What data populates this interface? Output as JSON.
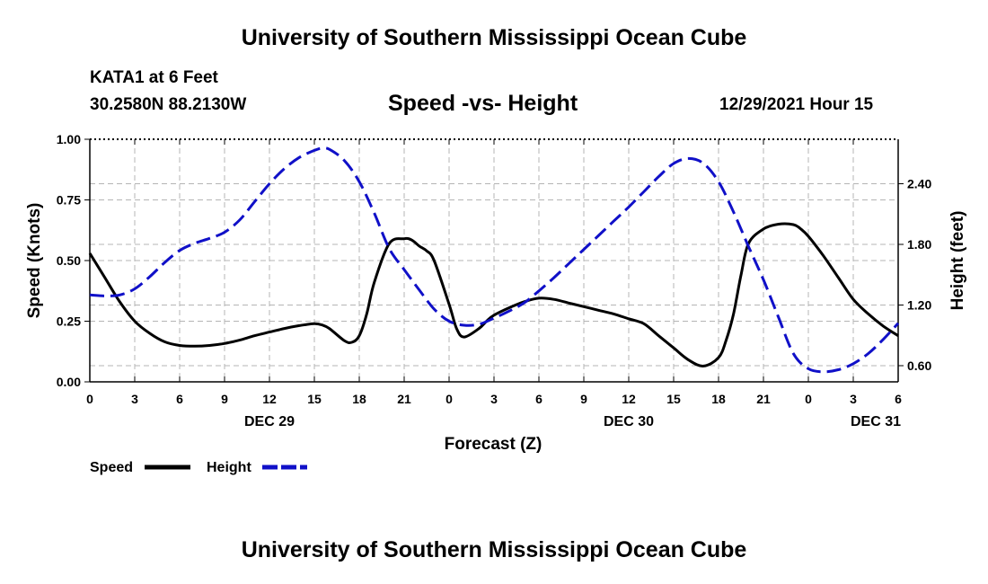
{
  "header": {
    "title_top": "University of Southern Mississippi Ocean Cube",
    "title_bottom": "University of Southern Mississippi Ocean Cube",
    "station": "KATA1 at 6 Feet",
    "coords": "30.2580N  88.2130W",
    "chart_title": "Speed -vs- Height",
    "datetime": "12/29/2021 Hour 15"
  },
  "colors": {
    "speed": "#000000",
    "height": "#1010c8",
    "grid": "#b4b4b4"
  },
  "chart_data": {
    "type": "line",
    "title": "Speed -vs- Height",
    "xlabel": "Forecast (Z)",
    "ylabel": "Speed (Knots)",
    "y2label": "Height (feet)",
    "xlim": [
      0,
      54
    ],
    "ylim": [
      0,
      1.0
    ],
    "y2lim": [
      0.44,
      2.84
    ],
    "x_ticks": [
      0,
      3,
      6,
      9,
      12,
      15,
      18,
      21,
      24,
      27,
      30,
      33,
      36,
      39,
      42,
      45,
      48,
      51,
      54
    ],
    "x_tick_labels": [
      "0",
      "3",
      "6",
      "9",
      "12",
      "15",
      "18",
      "21",
      "0",
      "3",
      "6",
      "9",
      "12",
      "15",
      "18",
      "21",
      "0",
      "3",
      "6"
    ],
    "date_labels": [
      {
        "x": 12,
        "label": "DEC 29"
      },
      {
        "x": 36,
        "label": "DEC 30"
      },
      {
        "x": 52.5,
        "label": "DEC 31"
      }
    ],
    "y_ticks": [
      0,
      0.25,
      0.5,
      0.75,
      1.0
    ],
    "y_tick_labels": [
      "0.00",
      "0.25",
      "0.50",
      "0.75",
      "1.00"
    ],
    "y2_ticks": [
      0.6,
      1.2,
      1.8,
      2.4
    ],
    "y2_tick_labels": [
      "0.60",
      "1.20",
      "1.80",
      "2.40"
    ],
    "grid": true,
    "legend": {
      "placement": "bottom-left",
      "entries": [
        "Speed",
        "Height"
      ]
    },
    "series": [
      {
        "name": "Speed",
        "axis": "left",
        "style": "solid",
        "x": [
          0,
          1,
          2,
          3,
          4,
          5,
          6,
          7,
          8,
          9,
          10,
          11,
          12,
          13,
          14,
          15,
          15.5,
          16,
          17,
          17.5,
          18,
          18.5,
          19,
          20,
          21,
          21.5,
          22,
          22.5,
          23,
          24,
          24.5,
          25,
          26,
          26.5,
          27,
          28,
          29,
          30,
          31,
          32,
          33,
          34,
          35,
          36,
          37,
          38,
          39,
          40,
          41,
          42,
          42.5,
          43,
          43.5,
          44,
          45,
          46,
          47,
          47.5,
          48,
          49,
          50,
          51,
          52,
          53,
          54
        ],
        "values": [
          0.53,
          0.43,
          0.33,
          0.25,
          0.2,
          0.165,
          0.15,
          0.147,
          0.15,
          0.158,
          0.172,
          0.19,
          0.205,
          0.22,
          0.232,
          0.24,
          0.235,
          0.22,
          0.17,
          0.163,
          0.19,
          0.28,
          0.41,
          0.57,
          0.59,
          0.585,
          0.56,
          0.54,
          0.5,
          0.32,
          0.22,
          0.185,
          0.22,
          0.25,
          0.275,
          0.305,
          0.33,
          0.345,
          0.34,
          0.325,
          0.31,
          0.295,
          0.28,
          0.26,
          0.24,
          0.19,
          0.14,
          0.09,
          0.065,
          0.1,
          0.17,
          0.28,
          0.44,
          0.57,
          0.63,
          0.65,
          0.648,
          0.63,
          0.6,
          0.52,
          0.43,
          0.34,
          0.28,
          0.23,
          0.19
        ]
      },
      {
        "name": "Height",
        "axis": "right",
        "style": "dashed",
        "x": [
          0,
          1,
          2,
          3,
          4,
          5,
          6,
          7,
          8,
          9,
          10,
          11,
          12,
          13,
          14,
          15,
          15.5,
          16,
          17,
          18,
          19,
          20,
          21,
          22,
          23,
          24,
          25,
          26,
          27,
          28,
          29,
          30,
          31,
          32,
          33,
          34,
          35,
          36,
          37,
          38,
          39,
          40,
          41,
          42,
          43,
          44,
          45,
          46,
          47,
          48,
          49,
          50,
          51,
          52,
          53,
          54
        ],
        "values": [
          1.3,
          1.29,
          1.3,
          1.36,
          1.48,
          1.62,
          1.74,
          1.81,
          1.86,
          1.92,
          2.04,
          2.22,
          2.4,
          2.55,
          2.66,
          2.73,
          2.75,
          2.74,
          2.63,
          2.42,
          2.11,
          1.76,
          1.55,
          1.35,
          1.16,
          1.04,
          1.0,
          1.01,
          1.07,
          1.14,
          1.22,
          1.34,
          1.47,
          1.61,
          1.75,
          1.89,
          2.03,
          2.17,
          2.32,
          2.47,
          2.6,
          2.65,
          2.6,
          2.42,
          2.12,
          1.78,
          1.45,
          1.08,
          0.72,
          0.57,
          0.54,
          0.56,
          0.62,
          0.72,
          0.86,
          1.02
        ]
      }
    ]
  }
}
